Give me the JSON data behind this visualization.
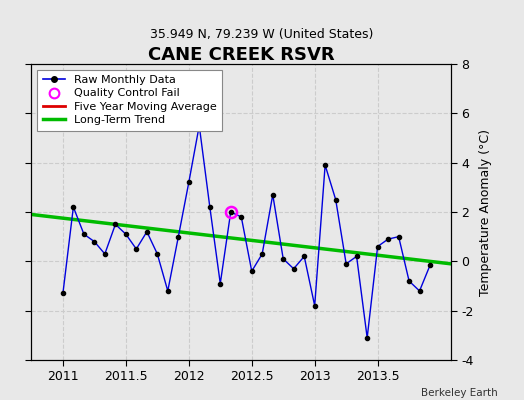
{
  "title": "CANE CREEK RSVR",
  "subtitle": "35.949 N, 79.239 W (United States)",
  "attribution": "Berkeley Earth",
  "ylabel": "Temperature Anomaly (°C)",
  "xlim": [
    2010.75,
    2014.08
  ],
  "ylim": [
    -4,
    8
  ],
  "xticks": [
    2011,
    2011.5,
    2012,
    2012.5,
    2013,
    2013.5
  ],
  "yticks": [
    -4,
    -2,
    0,
    2,
    4,
    6,
    8
  ],
  "background_color": "#e8e8e8",
  "raw_x": [
    2011.0,
    2011.083,
    2011.167,
    2011.25,
    2011.333,
    2011.417,
    2011.5,
    2011.583,
    2011.667,
    2011.75,
    2011.833,
    2011.917,
    2012.0,
    2012.083,
    2012.167,
    2012.25,
    2012.333,
    2012.417,
    2012.5,
    2012.583,
    2012.667,
    2012.75,
    2012.833,
    2012.917,
    2013.0,
    2013.083,
    2013.167,
    2013.25,
    2013.333,
    2013.417,
    2013.5,
    2013.583,
    2013.667,
    2013.75,
    2013.833,
    2013.917
  ],
  "raw_y": [
    -1.3,
    2.2,
    1.1,
    0.8,
    0.3,
    1.5,
    1.1,
    0.5,
    1.2,
    0.3,
    -1.2,
    1.0,
    3.2,
    5.5,
    2.2,
    -0.9,
    2.0,
    1.8,
    -0.4,
    0.3,
    2.7,
    0.1,
    -0.3,
    0.2,
    -1.8,
    3.9,
    2.5,
    -0.1,
    0.2,
    -3.1,
    0.6,
    0.9,
    1.0,
    -0.8,
    -1.2,
    -0.15
  ],
  "qc_fail_x": [
    2012.333
  ],
  "qc_fail_y": [
    2.0
  ],
  "trend_x": [
    2010.75,
    2014.08
  ],
  "trend_y": [
    1.9,
    -0.1
  ],
  "raw_line_color": "#0000dd",
  "raw_marker_color": "#000000",
  "qc_color": "#ff00ff",
  "trend_color": "#00bb00",
  "ma_color": "#dd0000",
  "grid_color": "#cccccc"
}
